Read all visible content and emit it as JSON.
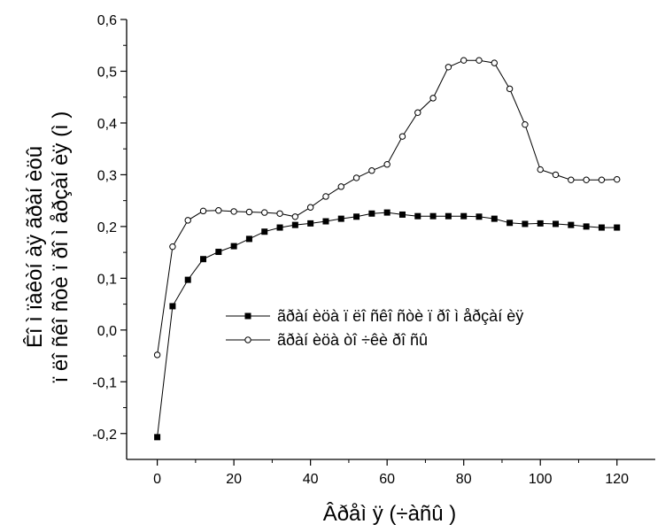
{
  "chart_data": {
    "type": "line",
    "title": "",
    "xlabel": "Âðåì ÿ (÷àñû )",
    "ylabel_line1": "Êî ì ïàêòí àÿ ãðàí èöû",
    "ylabel_line2": "ï ëî ñêî ñòè ï ðî ì åðçàí èÿ (ì )",
    "xlim": [
      -8,
      130
    ],
    "ylim": [
      -0.25,
      0.6
    ],
    "x_ticks": [
      0,
      20,
      40,
      60,
      80,
      100,
      120
    ],
    "x_tick_labels": [
      "0",
      "20",
      "40",
      "60",
      "80",
      "100",
      "120"
    ],
    "y_ticks": [
      -0.2,
      -0.1,
      0.0,
      0.1,
      0.2,
      0.3,
      0.4,
      0.5,
      0.6
    ],
    "y_tick_labels": [
      "-0,2",
      "-0,1",
      "0,0",
      "0,1",
      "0,2",
      "0,3",
      "0,4",
      "0,5",
      "0,6"
    ],
    "grid": false,
    "legend_position": "center-right",
    "series": [
      {
        "name": "ãðàí èöà ï ëî ñêî ñòè ï ðî ì åðçàí èÿ",
        "marker": "filled-square",
        "color": "#000000",
        "x": [
          0,
          4,
          8,
          12,
          16,
          20,
          24,
          28,
          32,
          36,
          40,
          44,
          48,
          52,
          56,
          60,
          64,
          68,
          72,
          76,
          80,
          84,
          88,
          92,
          96,
          100,
          104,
          108,
          112,
          116,
          120
        ],
        "y": [
          -0.207,
          0.046,
          0.097,
          0.137,
          0.151,
          0.162,
          0.176,
          0.19,
          0.198,
          0.203,
          0.206,
          0.21,
          0.215,
          0.219,
          0.225,
          0.227,
          0.223,
          0.22,
          0.22,
          0.22,
          0.22,
          0.219,
          0.215,
          0.207,
          0.205,
          0.206,
          0.205,
          0.203,
          0.2,
          0.198,
          0.198
        ]
      },
      {
        "name": "ãðàí èöà òî ÷êè ðî ñû",
        "marker": "open-circle",
        "color": "#000000",
        "x": [
          0,
          4,
          8,
          12,
          16,
          20,
          24,
          28,
          32,
          36,
          40,
          44,
          48,
          52,
          56,
          60,
          64,
          68,
          72,
          76,
          80,
          84,
          88,
          92,
          96,
          100,
          104,
          108,
          112,
          116,
          120
        ],
        "y": [
          -0.048,
          0.161,
          0.212,
          0.23,
          0.231,
          0.229,
          0.228,
          0.227,
          0.225,
          0.219,
          0.237,
          0.258,
          0.277,
          0.294,
          0.308,
          0.32,
          0.374,
          0.42,
          0.448,
          0.508,
          0.521,
          0.521,
          0.516,
          0.466,
          0.397,
          0.31,
          0.3,
          0.29,
          0.29,
          0.29,
          0.291
        ]
      }
    ]
  }
}
